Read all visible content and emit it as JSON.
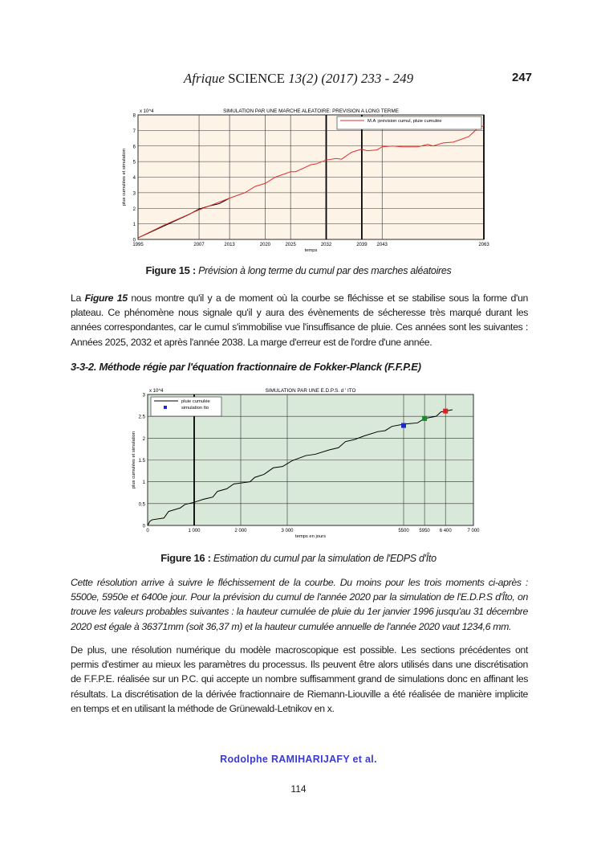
{
  "header": {
    "journal_italic": "Afrique",
    "journal_caps": "SCIENCE",
    "citation": "13(2) (2017) 233 - 249",
    "page_number": "247"
  },
  "figure15": {
    "label": "Figure  15 :",
    "caption": "Prévision à long terme du cumul par des marches aléatoires"
  },
  "para1": {
    "prefix": "La ",
    "fig_ref": "Figure 15",
    "text": " nous montre qu'il y a de moment où la courbe se fléchisse et se stabilise sous la forme d'un plateau. Ce phénomène nous signale qu'il y aura des évènements de sécheresse très marqué durant les années correspondantes, car le cumul s'immobilise vue l'insuffisance de pluie. Ces années sont les suivantes : Années 2025, 2032 et après l'année 2038. La marge d'erreur est de l'ordre d'une année."
  },
  "section_heading": "3-3-2. Méthode régie par l'équation fractionnaire de Fokker-Planck (F.F.P.E)",
  "figure16": {
    "label": "Figure 16 :",
    "caption": "Estimation du cumul par la simulation de l'EDPS d'Îto"
  },
  "para2": "Cette résolution arrive à suivre le fléchissement de la courbe. Du moins pour les trois moments ci-après : 5500e, 5950e et 6400e jour. Pour la prévision du cumul de l'année 2020 par la simulation de l'E.D.P.S d'Îto, on trouve les valeurs probables suivantes : la hauteur cumulée de pluie du 1er janvier 1996 jusqu'au 31 décembre 2020 est égale à 36371mm (soit 36,37 m) et la hauteur cumulée annuelle de l'année 2020 vaut 1234,6 mm.",
  "para3": "De plus, une résolution numérique du modèle macroscopique est possible. Les sections précédentes ont permis d'estimer au mieux les paramètres du processus. Ils peuvent être alors utilisés dans une discrétisation de F.F.P.E. réalisée sur un P.C. qui accepte un nombre suffisamment grand de simulations donc en affinant les résultats. La discrétisation de la dérivée fractionnaire de Riemann-Liouville a été réalisée de manière implicite en temps et en utilisant la méthode de Grünewald-Letnikov en x.",
  "author": "Rodolphe  RAMIHARIJAFY  et  al.",
  "footer_page": "114",
  "chart_data": [
    {
      "type": "line",
      "title": "SIMULATION PAR UNE MARCHE ALEATOIRE: PREVISION A LONG TERME",
      "xlabel": "temps",
      "ylabel": "plus cumulées et simulation",
      "y_multiplier": "x 10^4",
      "xlim": [
        1995,
        2063
      ],
      "ylim": [
        0,
        8
      ],
      "grid": true,
      "legend": "top-right",
      "background": "#fdf3e6",
      "xticks": [
        1995,
        2007,
        2013,
        2020,
        2025,
        2032,
        2039,
        2043,
        2063
      ],
      "yticks": [
        0,
        1,
        2,
        3,
        4,
        5,
        6,
        7,
        8
      ],
      "emphasized_x": [
        2032,
        2039,
        2063
      ],
      "series": [
        {
          "color": "#000000",
          "x": [
            1995,
            1997,
            1999,
            2001,
            2003,
            2005,
            2007,
            2009,
            2011,
            2013
          ],
          "y": [
            0.1,
            0.4,
            0.7,
            1.0,
            1.3,
            1.6,
            1.95,
            2.15,
            2.3,
            2.65
          ]
        },
        {
          "name": "M.A :prévision cumul, pluie cumulée",
          "color": "#e03030",
          "x": [
            1995,
            2000,
            2007,
            2013,
            2016,
            2018,
            2020,
            2022,
            2025,
            2026,
            2029,
            2030,
            2032,
            2034,
            2035,
            2037,
            2039,
            2040,
            2042,
            2043,
            2045,
            2047,
            2050,
            2052,
            2053,
            2055,
            2057,
            2060,
            2062,
            2063
          ],
          "y": [
            0.1,
            0.9,
            1.9,
            2.65,
            3.0,
            3.4,
            3.6,
            4.0,
            4.35,
            4.35,
            4.8,
            4.85,
            5.1,
            5.2,
            5.15,
            5.6,
            5.8,
            5.7,
            5.75,
            5.95,
            6.0,
            5.95,
            5.95,
            6.1,
            6.0,
            6.2,
            6.25,
            6.6,
            7.2,
            7.3
          ]
        }
      ]
    },
    {
      "type": "line",
      "title": "SIMULATION PAR  UNE    E.D.P.S.  d ' ITO",
      "xlabel": "temps en jours",
      "ylabel": "plus cumulées et simulation",
      "y_multiplier": "x 10^4",
      "xlim": [
        0,
        7000
      ],
      "ylim": [
        0,
        3
      ],
      "grid": true,
      "legend": "top-left",
      "background": "#d9e9d9",
      "xticks": [
        0,
        1000,
        2000,
        3000,
        5500,
        5950,
        6400,
        7000
      ],
      "xtick_labels": [
        "0",
        "1 000",
        "2 000",
        "3 000",
        "5500",
        "5950",
        "6 400",
        "7 000"
      ],
      "yticks": [
        0,
        0.5,
        1,
        1.5,
        2,
        2.5,
        3
      ],
      "ytick_labels": [
        "0",
        "0.5",
        "1",
        "1.5",
        "2",
        "2.5",
        "3"
      ],
      "emphasized_x": [
        1000
      ],
      "series": [
        {
          "name": "pluie cumulée",
          "color": "#000000",
          "x": [
            0,
            50,
            100,
            350,
            450,
            700,
            800,
            1000,
            1200,
            1400,
            1500,
            1700,
            1850,
            2200,
            2300,
            2500,
            2700,
            2900,
            3100,
            3400,
            3600,
            3900,
            4100,
            4250,
            4450,
            4650,
            4950,
            5100,
            5250,
            5500,
            5800,
            5950,
            6200,
            6300,
            6550
          ],
          "y": [
            0,
            0.1,
            0.13,
            0.17,
            0.32,
            0.4,
            0.48,
            0.53,
            0.6,
            0.65,
            0.78,
            0.84,
            0.95,
            1.0,
            1.1,
            1.17,
            1.32,
            1.35,
            1.48,
            1.6,
            1.63,
            1.73,
            1.78,
            1.92,
            1.97,
            2.05,
            2.15,
            2.17,
            2.27,
            2.32,
            2.35,
            2.45,
            2.5,
            2.6,
            2.65
          ]
        },
        {
          "name": "simulation Ito",
          "type": "scatter",
          "x": [
            5500,
            5950,
            6400
          ],
          "y": [
            2.29,
            2.45,
            2.62
          ],
          "colors": [
            "#1a2ad0",
            "#1a8a2a",
            "#e02020"
          ]
        }
      ]
    }
  ]
}
